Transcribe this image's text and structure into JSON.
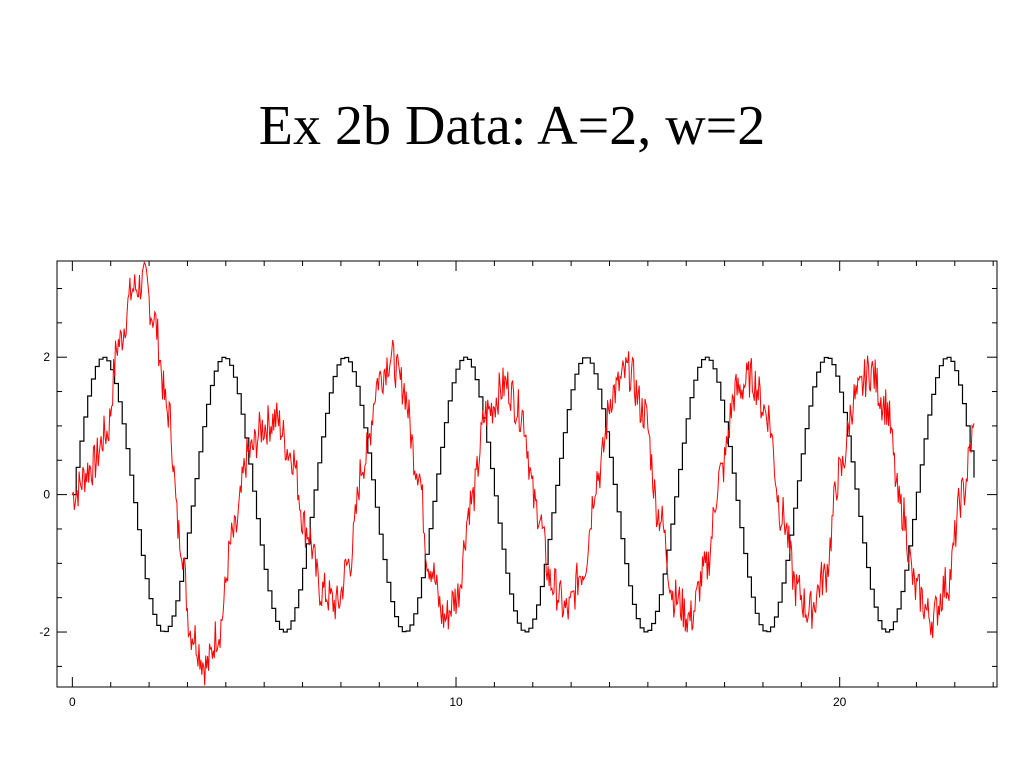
{
  "slide": {
    "title": "Ex 2b Data: A=2, w=2"
  },
  "chart_data": {
    "type": "line",
    "title": "",
    "xlabel": "",
    "ylabel": "",
    "xlim": [
      -0.4,
      24.1
    ],
    "ylim": [
      -2.8,
      3.4
    ],
    "xticks": [
      0,
      10,
      20
    ],
    "yticks": [
      -2,
      0,
      2
    ],
    "x_minor_step": 1,
    "y_minor_step": 0.5,
    "grid": false,
    "legend": "none",
    "series": [
      {
        "color": "#000000",
        "style": "staircase sinusoid",
        "amplitude": 2,
        "omega": 2,
        "x_range": [
          0,
          23.5
        ],
        "points": [
          [
            0,
            0.0
          ],
          [
            0.4,
            1.43
          ],
          [
            0.8,
            2.0
          ],
          [
            1.2,
            1.35
          ],
          [
            1.6,
            0.0
          ],
          [
            2.0,
            -1.4
          ],
          [
            2.4,
            -2.0
          ],
          [
            2.8,
            -1.4
          ],
          [
            3.2,
            0.0
          ],
          [
            3.6,
            1.43
          ],
          [
            4.0,
            2.0
          ],
          [
            4.4,
            1.35
          ],
          [
            4.8,
            0.0
          ],
          [
            5.2,
            -1.4
          ],
          [
            5.6,
            -2.0
          ],
          [
            6.0,
            -1.4
          ],
          [
            6.4,
            0.0
          ],
          [
            6.8,
            1.43
          ],
          [
            7.2,
            2.0
          ],
          [
            7.6,
            1.35
          ],
          [
            8.0,
            0.0
          ],
          [
            8.4,
            -1.4
          ],
          [
            8.8,
            -2.0
          ],
          [
            9.2,
            -1.4
          ],
          [
            9.6,
            0.0
          ],
          [
            10.0,
            1.43
          ],
          [
            10.4,
            2.0
          ],
          [
            10.8,
            1.35
          ],
          [
            11.2,
            0.0
          ],
          [
            11.6,
            -1.4
          ],
          [
            12.0,
            -2.0
          ],
          [
            12.4,
            -1.4
          ],
          [
            12.8,
            0.0
          ],
          [
            13.2,
            1.43
          ],
          [
            13.6,
            2.0
          ],
          [
            14.0,
            1.35
          ],
          [
            14.4,
            0.0
          ],
          [
            14.8,
            -1.4
          ],
          [
            15.2,
            -2.0
          ],
          [
            15.6,
            -1.4
          ],
          [
            16.0,
            0.0
          ],
          [
            16.4,
            1.43
          ],
          [
            16.8,
            2.0
          ],
          [
            17.2,
            1.35
          ],
          [
            17.6,
            0.0
          ],
          [
            18.0,
            -1.4
          ],
          [
            18.4,
            -2.0
          ],
          [
            18.8,
            -1.4
          ],
          [
            19.2,
            0.0
          ],
          [
            19.6,
            1.43
          ],
          [
            20.0,
            2.0
          ],
          [
            20.4,
            1.35
          ],
          [
            20.8,
            0.0
          ],
          [
            21.2,
            -1.4
          ],
          [
            21.6,
            -2.0
          ],
          [
            22.0,
            -1.4
          ],
          [
            22.4,
            0.0
          ],
          [
            22.8,
            1.43
          ],
          [
            23.2,
            2.0
          ],
          [
            23.5,
            1.2
          ]
        ]
      },
      {
        "color": "#ff0000",
        "style": "noisy signal",
        "x_range": [
          0,
          23.5
        ],
        "noise_amplitude": 0.3,
        "points": [
          [
            0,
            0.0
          ],
          [
            0.5,
            0.4
          ],
          [
            0.9,
            0.9
          ],
          [
            1.2,
            2.2
          ],
          [
            1.6,
            3.0
          ],
          [
            1.9,
            3.1
          ],
          [
            2.1,
            2.6
          ],
          [
            2.5,
            1.2
          ],
          [
            2.8,
            -0.6
          ],
          [
            3.1,
            -2.0
          ],
          [
            3.5,
            -2.5
          ],
          [
            3.8,
            -2.0
          ],
          [
            4.2,
            -0.6
          ],
          [
            4.6,
            0.6
          ],
          [
            5.0,
            1.0
          ],
          [
            5.3,
            1.1
          ],
          [
            5.7,
            0.6
          ],
          [
            6.1,
            -0.5
          ],
          [
            6.5,
            -1.4
          ],
          [
            6.9,
            -1.6
          ],
          [
            7.2,
            -1.0
          ],
          [
            7.6,
            0.5
          ],
          [
            8.0,
            1.7
          ],
          [
            8.3,
            2.0
          ],
          [
            8.6,
            1.6
          ],
          [
            9.0,
            0.4
          ],
          [
            9.3,
            -1.0
          ],
          [
            9.7,
            -1.8
          ],
          [
            10.0,
            -1.5
          ],
          [
            10.4,
            -0.1
          ],
          [
            10.8,
            1.2
          ],
          [
            11.3,
            1.6
          ],
          [
            11.7,
            1.2
          ],
          [
            12.1,
            -0.2
          ],
          [
            12.5,
            -1.3
          ],
          [
            12.9,
            -1.7
          ],
          [
            13.3,
            -1.1
          ],
          [
            13.7,
            0.3
          ],
          [
            14.1,
            1.5
          ],
          [
            14.5,
            1.8
          ],
          [
            14.9,
            1.2
          ],
          [
            15.3,
            -0.3
          ],
          [
            15.7,
            -1.5
          ],
          [
            16.1,
            -1.8
          ],
          [
            16.5,
            -1.1
          ],
          [
            16.9,
            0.3
          ],
          [
            17.3,
            1.5
          ],
          [
            17.7,
            1.7
          ],
          [
            18.1,
            1.2
          ],
          [
            18.5,
            -0.3
          ],
          [
            18.9,
            -1.4
          ],
          [
            19.2,
            -1.7
          ],
          [
            19.6,
            -1.2
          ],
          [
            20.0,
            0.3
          ],
          [
            20.4,
            1.4
          ],
          [
            20.8,
            1.8
          ],
          [
            21.2,
            1.3
          ],
          [
            21.6,
            -0.2
          ],
          [
            22.0,
            -1.4
          ],
          [
            22.4,
            -1.8
          ],
          [
            22.8,
            -1.3
          ],
          [
            23.2,
            0.0
          ],
          [
            23.5,
            0.9
          ]
        ]
      }
    ]
  }
}
